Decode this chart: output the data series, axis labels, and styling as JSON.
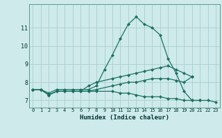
{
  "xlabel": "Humidex (Indice chaleur)",
  "bg_color": "#ceeaea",
  "grid_color": "#aacece",
  "line_color": "#1a7060",
  "xlim": [
    -0.5,
    23.5
  ],
  "ylim": [
    6.6,
    12.3
  ],
  "xticks": [
    0,
    1,
    2,
    3,
    4,
    5,
    6,
    7,
    8,
    9,
    10,
    11,
    12,
    13,
    14,
    15,
    16,
    17,
    18,
    19,
    20,
    21,
    22,
    23
  ],
  "yticks": [
    7,
    8,
    9,
    10,
    11
  ],
  "lines": [
    {
      "x": [
        0,
        1,
        2,
        3,
        4,
        5,
        6,
        7,
        8,
        9,
        10,
        11,
        12,
        13,
        14,
        15,
        16,
        17,
        18,
        19,
        20,
        21
      ],
      "y": [
        7.6,
        7.6,
        7.4,
        7.6,
        7.6,
        7.6,
        7.6,
        7.6,
        7.8,
        8.7,
        9.5,
        10.4,
        11.2,
        11.6,
        11.2,
        11.0,
        10.6,
        9.3,
        8.5,
        7.5,
        7.0,
        7.0
      ]
    },
    {
      "x": [
        0,
        1,
        2,
        3,
        4,
        5,
        6,
        7,
        8,
        10,
        11,
        12,
        13,
        14,
        15,
        16,
        17,
        18,
        19,
        20
      ],
      "y": [
        7.6,
        7.6,
        7.3,
        7.5,
        7.5,
        7.5,
        7.5,
        7.8,
        8.0,
        8.2,
        8.3,
        8.4,
        8.5,
        8.6,
        8.7,
        8.8,
        8.9,
        8.7,
        8.5,
        8.3
      ]
    },
    {
      "x": [
        0,
        1,
        2,
        3,
        4,
        5,
        6,
        7,
        8,
        10,
        11,
        12,
        13,
        14,
        15,
        16,
        17,
        18,
        19,
        20
      ],
      "y": [
        7.6,
        7.6,
        7.3,
        7.5,
        7.5,
        7.5,
        7.5,
        7.5,
        7.6,
        7.8,
        7.9,
        8.0,
        8.0,
        8.1,
        8.2,
        8.2,
        8.2,
        8.1,
        8.0,
        8.3
      ]
    },
    {
      "x": [
        0,
        1,
        2,
        3,
        4,
        5,
        6,
        7,
        8,
        10,
        11,
        12,
        13,
        14,
        15,
        16,
        17,
        18,
        19,
        20,
        21,
        22,
        23
      ],
      "y": [
        7.6,
        7.6,
        7.3,
        7.5,
        7.5,
        7.5,
        7.5,
        7.5,
        7.5,
        7.5,
        7.4,
        7.4,
        7.3,
        7.2,
        7.2,
        7.2,
        7.1,
        7.1,
        7.0,
        7.0,
        7.0,
        7.0,
        6.9
      ]
    }
  ]
}
